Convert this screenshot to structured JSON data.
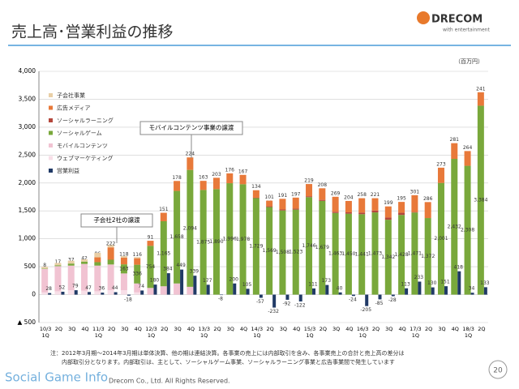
{
  "header": {
    "title": "売上高･営業利益の推移",
    "logo": "DRECOM",
    "logo_sub": "with entertainment"
  },
  "chart_data": {
    "type": "stacked-bar",
    "unit": "（百万円）",
    "categories": [
      "10/3\n1Q",
      "2Q",
      "3Q",
      "4Q",
      "11/3\n1Q",
      "2Q",
      "3Q",
      "4Q",
      "12/3\n1Q",
      "2Q",
      "3Q",
      "4Q",
      "13/3\n1Q",
      "2Q",
      "3Q",
      "4Q",
      "14/3\n1Q",
      "2Q",
      "3Q",
      "4Q",
      "15/3\n1Q",
      "2Q",
      "3Q",
      "4Q",
      "16/3\n1Q",
      "2Q",
      "3Q",
      "4Q",
      "17/3\n1Q",
      "2Q",
      "3Q",
      "4Q",
      "18/3\n1Q",
      "2Q"
    ],
    "ylim": [
      -500,
      4000
    ],
    "yticks": [
      {
        "value": -500,
        "label": "▲ 500"
      },
      0,
      500,
      {
        "value": 1000,
        "label": "1,000"
      },
      {
        "value": 1500,
        "label": "1,500"
      },
      {
        "value": 2000,
        "label": "2,000"
      },
      {
        "value": 2500,
        "label": "2,500"
      },
      {
        "value": 3000,
        "label": "3,000"
      },
      {
        "value": 3500,
        "label": "3,500"
      },
      {
        "value": 4000,
        "label": "4,000"
      }
    ],
    "grid": true,
    "series": [
      {
        "name": "子会社事業",
        "color": "#e9cfa6",
        "values": [
          30,
          40,
          50,
          40,
          80,
          40,
          30,
          20,
          null,
          null,
          null,
          null,
          null,
          null,
          null,
          null,
          null,
          null,
          null,
          null,
          null,
          null,
          null,
          null,
          null,
          null,
          null,
          null,
          null,
          null,
          null,
          null,
          null,
          null
        ]
      },
      {
        "name": "広告メディア",
        "color": "#e8793a",
        "values": [
          null,
          null,
          null,
          null,
          86,
          222,
          118,
          116,
          91,
          151,
          178,
          224,
          163,
          203,
          176,
          167,
          134,
          101,
          191,
          197,
          219,
          208,
          269,
          204,
          258,
          221,
          199,
          195,
          301,
          286,
          273,
          281,
          264,
          241
        ],
        "labels": true
      },
      {
        "name": "ソーシャルラーニング",
        "color": "#b4473c",
        "values": [
          null,
          null,
          null,
          null,
          null,
          null,
          null,
          null,
          null,
          null,
          null,
          null,
          null,
          null,
          null,
          null,
          7,
          13,
          17,
          18,
          16,
          18,
          21,
          24,
          28,
          33,
          39,
          38,
          9,
          null,
          null,
          null,
          null,
          null
        ],
        "labels": true
      },
      {
        "name": "ソーシャルゲーム",
        "color": "#79a83b",
        "values": [
          8,
          17,
          37,
          42,
          62,
          85,
          163,
          336,
          754,
          1165,
          1658,
          2094,
          1875,
          1890,
          1996,
          1978,
          1729,
          1569,
          1508,
          1523,
          1746,
          1679,
          1463,
          1450,
          1441,
          1473,
          1342,
          1428,
          1471,
          1372,
          2001,
          2432,
          2308,
          3384
        ],
        "value_labels": [
          "8",
          "17",
          "37",
          "42",
          "62",
          "85",
          "163",
          "336",
          "754",
          "1,165",
          "1,658",
          "2,094",
          "1,875",
          "1,890",
          "1,996",
          "1,978",
          "1,729",
          "1,569",
          "1,508",
          "1,523",
          "1,746",
          "1,679",
          "1,463",
          "1,450",
          "1,441",
          "1,473",
          "1,342",
          "1,428",
          "1,471",
          "1,372",
          "2,001",
          "2,432",
          "2,308",
          "3,384"
        ],
        "labels": true
      },
      {
        "name": "モバイルコンテンツ",
        "color": "#f1c3d2",
        "values": [
          420,
          450,
          440,
          480,
          460,
          460,
          300,
          160,
          120,
          150,
          200,
          140,
          null,
          null,
          null,
          null,
          null,
          null,
          null,
          null,
          null,
          null,
          null,
          null,
          null,
          null,
          null,
          null,
          null,
          null,
          null,
          null,
          null,
          null
        ]
      },
      {
        "name": "ウェブマーケティング",
        "color": "#f8dfe8",
        "values": [
          40,
          60,
          80,
          70,
          60,
          80,
          80,
          40,
          null,
          null,
          null,
          null,
          null,
          null,
          null,
          null,
          null,
          null,
          null,
          null,
          null,
          null,
          null,
          null,
          null,
          null,
          null,
          null,
          null,
          null,
          null,
          null,
          null,
          null
        ]
      }
    ],
    "profit": {
      "name": "営業利益",
      "color": "#203a66",
      "values": [
        28,
        52,
        79,
        47,
        36,
        44,
        -18,
        74,
        180,
        384,
        449,
        339,
        177,
        -8,
        200,
        105,
        -57,
        -232,
        -92,
        -122,
        111,
        173,
        40,
        -24,
        -205,
        -85,
        -28,
        113,
        233,
        130,
        151,
        418,
        34,
        133
      ]
    },
    "annotations": [
      "モバイルコンテンツ事業の譲渡",
      "子会社2社の譲渡"
    ]
  },
  "footer": {
    "note1": "注：2012年3月期～2014年3月期は単体決算、他の期は連結決算。各事業の売上には内部取引を含み、各事業売上の合計と売上高の差分は",
    "note2": "内部取引分となります。内部取引は、主として、ソーシャルゲーム事業、ソーシャルラーニング事業と広告事業間で発生しています",
    "copyright": "Drecom Co., Ltd. All Rights Reserved.",
    "watermark": "Social Game Info",
    "page": "20"
  }
}
